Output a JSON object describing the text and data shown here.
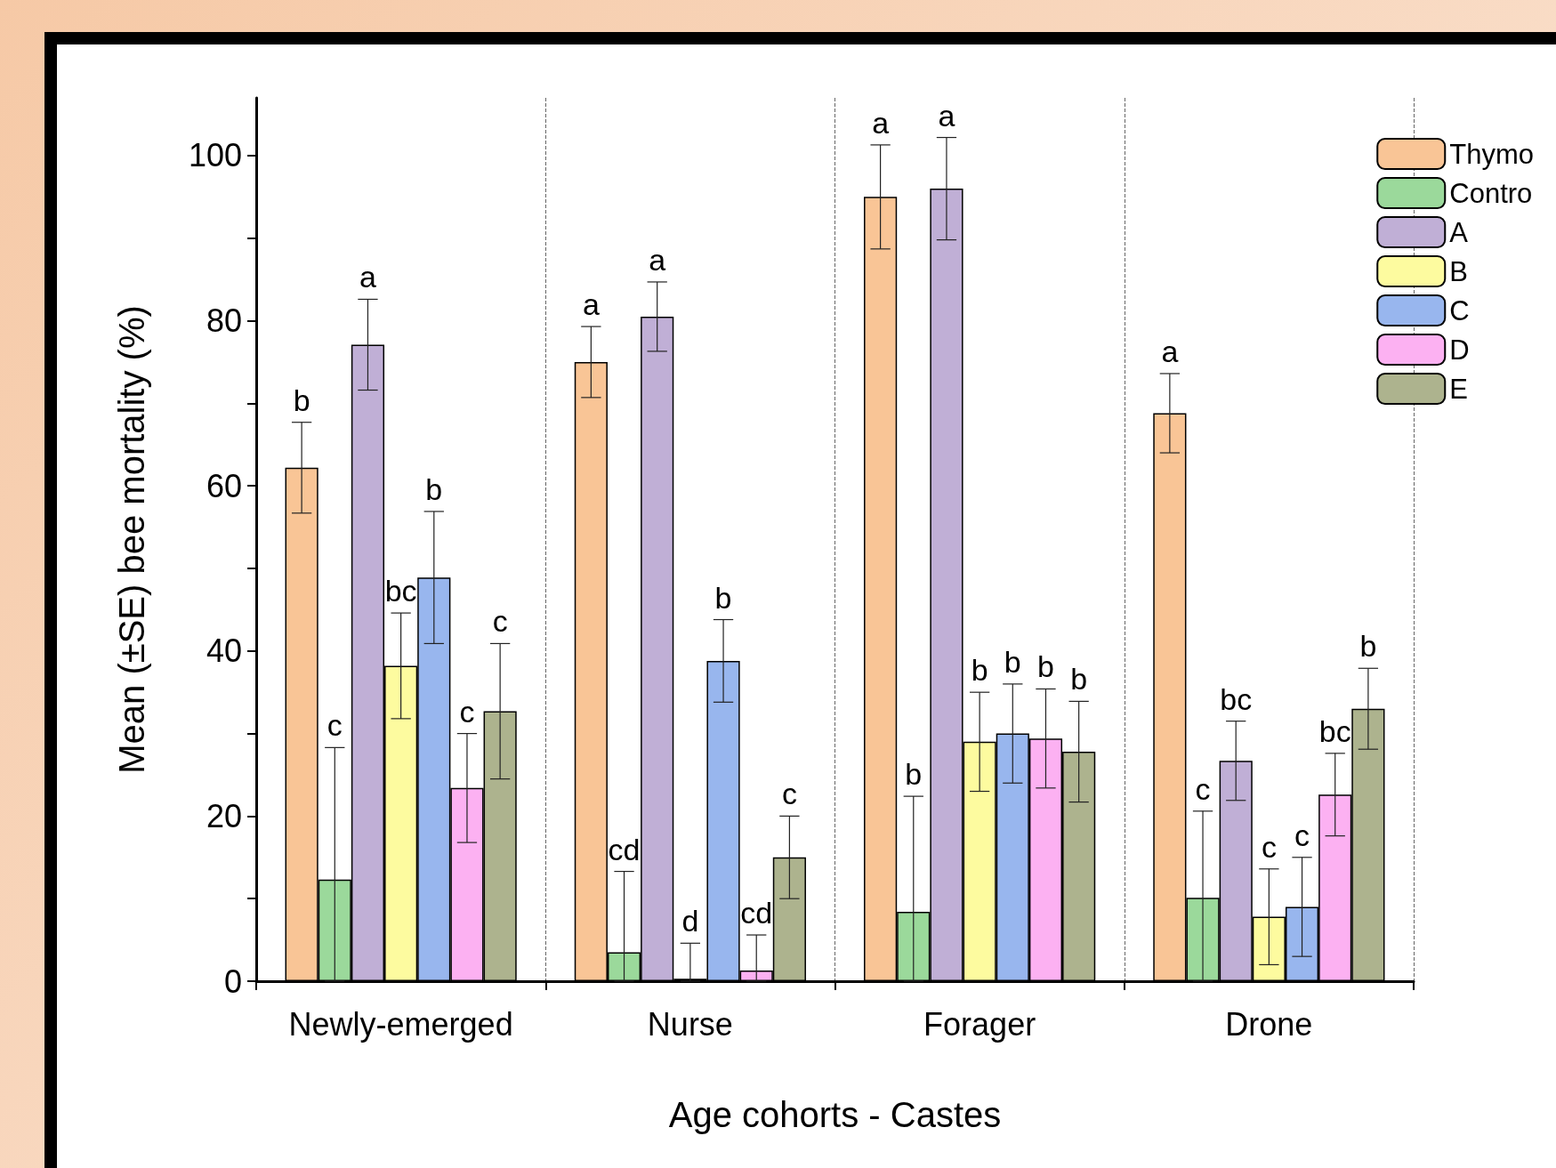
{
  "chart_data": {
    "type": "bar",
    "xlabel": "Age cohorts - Castes",
    "ylabel": "Mean (±SE) bee mortality (%)",
    "categories": [
      "Newly-emerged",
      "Nurse",
      "Forager",
      "Drone"
    ],
    "series": [
      {
        "name": "Thymo",
        "color": "#f9c596",
        "values": [
          62.2,
          75,
          95,
          68.8
        ],
        "errors": [
          5.5,
          4.3,
          6.3,
          4.8
        ]
      },
      {
        "name": "Contro",
        "color": "#9bd99b",
        "values": [
          12.3,
          3.5,
          8.4,
          10.1
        ],
        "errors": [
          [
            0,
            28.3
          ],
          [
            0,
            13.3
          ],
          [
            0,
            22.4
          ],
          [
            0,
            20.6
          ]
        ]
      },
      {
        "name": "A",
        "color": "#c0afd6",
        "values": [
          77.1,
          80.5,
          96,
          26.7
        ],
        "errors": [
          5.5,
          4.2,
          6.2,
          4.8
        ]
      },
      {
        "name": "B",
        "color": "#fdfb9f",
        "values": [
          38.2,
          0.3,
          29,
          7.8
        ],
        "errors": [
          6.4,
          [
            0,
            4.6
          ],
          6,
          5.8
        ]
      },
      {
        "name": "C",
        "color": "#98b6ee",
        "values": [
          48.9,
          38.8,
          30,
          9
        ],
        "errors": [
          8,
          5,
          6,
          6
        ]
      },
      {
        "name": "D",
        "color": "#fcb1f2",
        "values": [
          23.4,
          1.3,
          29.4,
          22.6
        ],
        "errors": [
          6.6,
          [
            0,
            5.6
          ],
          6,
          5
        ]
      },
      {
        "name": "E",
        "color": "#adb38e",
        "values": [
          32.7,
          15,
          27.8,
          33
        ],
        "errors": [
          8.2,
          5,
          6.1,
          4.9
        ]
      }
    ],
    "annotations": [
      "b",
      "c",
      "a",
      "bc",
      "b",
      "c",
      "c",
      "a",
      "cd",
      "a",
      "d",
      "b",
      "cd",
      "c",
      "a",
      "b",
      "a",
      "b",
      "b",
      "b",
      "b",
      "a",
      "c",
      "bc",
      "c",
      "c",
      "bc",
      "b"
    ],
    "ylim": [
      0,
      107
    ],
    "yticks": [
      0,
      {
        "value": 10,
        "label": null
      },
      20,
      {
        "value": 30,
        "label": null
      },
      40,
      {
        "value": 50,
        "label": null
      },
      60,
      {
        "value": 70,
        "label": null
      },
      80,
      {
        "value": 90,
        "label": null
      },
      100
    ],
    "grid": "x",
    "legend": "top right"
  }
}
